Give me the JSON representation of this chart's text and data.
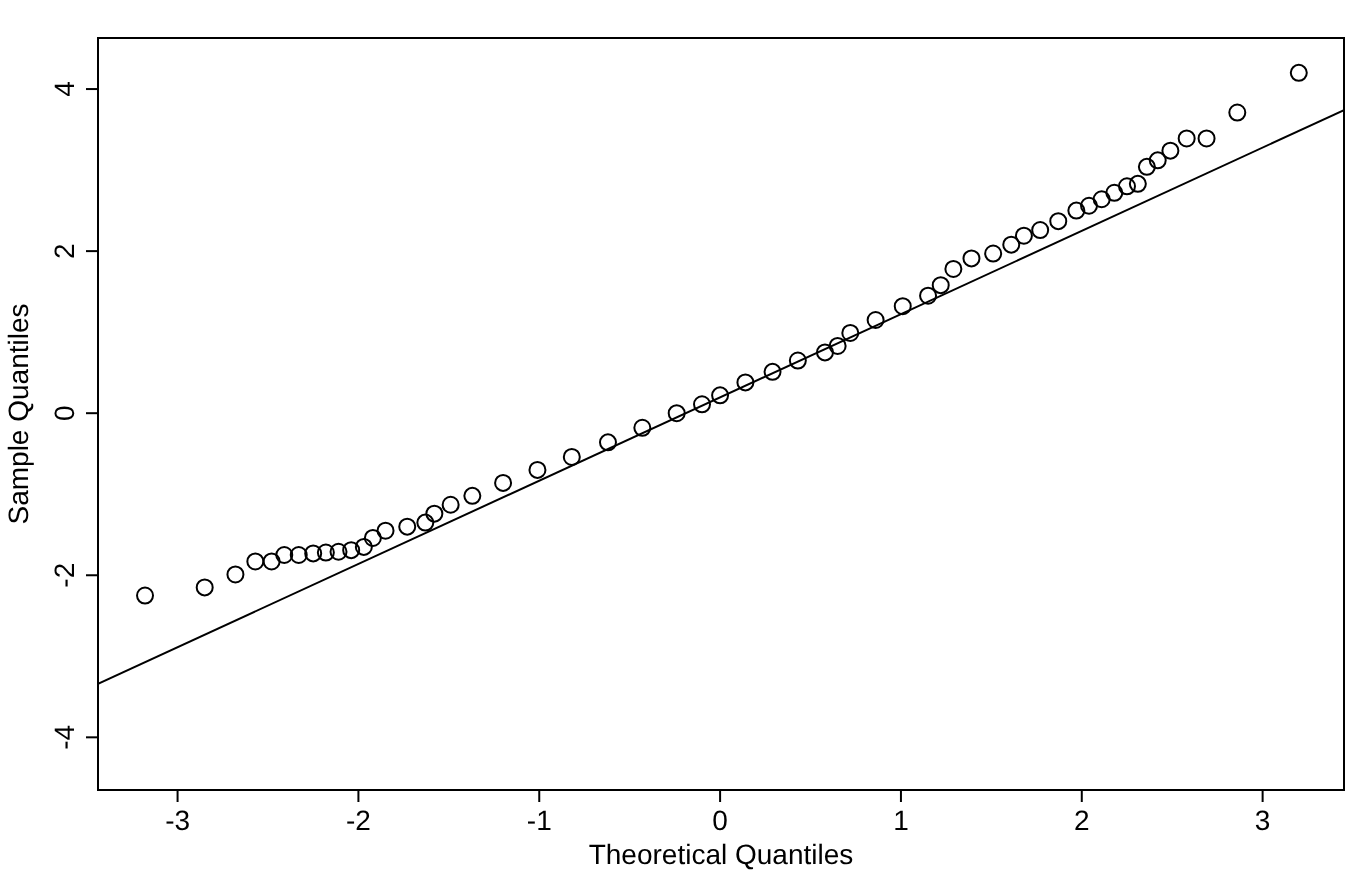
{
  "chart_data": {
    "type": "scatter",
    "xlabel": "Theoretical Quantiles",
    "ylabel": "Sample Quantiles",
    "xlim": [
      -3.44,
      3.45
    ],
    "ylim": [
      -4.65,
      4.63
    ],
    "xticks": [
      -3,
      -2,
      -1,
      0,
      1,
      2,
      3
    ],
    "yticks": [
      -4,
      -2,
      0,
      2,
      4
    ],
    "grid": false,
    "series": [
      {
        "marker": "circle",
        "color": "#000000",
        "x": [
          -3.18,
          -2.85,
          -2.68,
          -2.57,
          -2.48,
          -2.41,
          -2.33,
          -2.25,
          -2.18,
          -2.11,
          -2.04,
          -1.97,
          -1.92,
          -1.85,
          -1.73,
          -1.63,
          -1.58,
          -1.49,
          -1.37,
          -1.2,
          -1.01,
          -0.82,
          -0.62,
          -0.43,
          -0.24,
          -0.1,
          0,
          0.14,
          0.29,
          0.43,
          0.58,
          0.65,
          0.72,
          0.86,
          1.01,
          1.15,
          1.22,
          1.29,
          1.39,
          1.51,
          1.61,
          1.68,
          1.77,
          1.87,
          1.97,
          2.04,
          2.11,
          2.18,
          2.25,
          2.31,
          2.36,
          2.42,
          2.49,
          2.58,
          2.69,
          2.86,
          3.2
        ],
        "values": [
          -2.25,
          -2.15,
          -1.99,
          -1.83,
          -1.83,
          -1.75,
          -1.75,
          -1.73,
          -1.72,
          -1.71,
          -1.69,
          -1.65,
          -1.54,
          -1.45,
          -1.4,
          -1.35,
          -1.24,
          -1.13,
          -1.02,
          -0.86,
          -0.7,
          -0.54,
          -0.36,
          -0.18,
          0,
          0.11,
          0.22,
          0.38,
          0.51,
          0.65,
          0.75,
          0.83,
          0.99,
          1.15,
          1.32,
          1.45,
          1.58,
          1.78,
          1.91,
          1.97,
          2.08,
          2.19,
          2.26,
          2.37,
          2.5,
          2.56,
          2.64,
          2.72,
          2.8,
          2.83,
          3.04,
          3.12,
          3.24,
          3.39,
          3.39,
          3.71,
          4.2
        ]
      },
      {
        "type": "line",
        "color": "#000000",
        "line_style": "solid",
        "x": [
          -3.44,
          3.45
        ],
        "values": [
          -3.34,
          3.74
        ]
      }
    ]
  }
}
